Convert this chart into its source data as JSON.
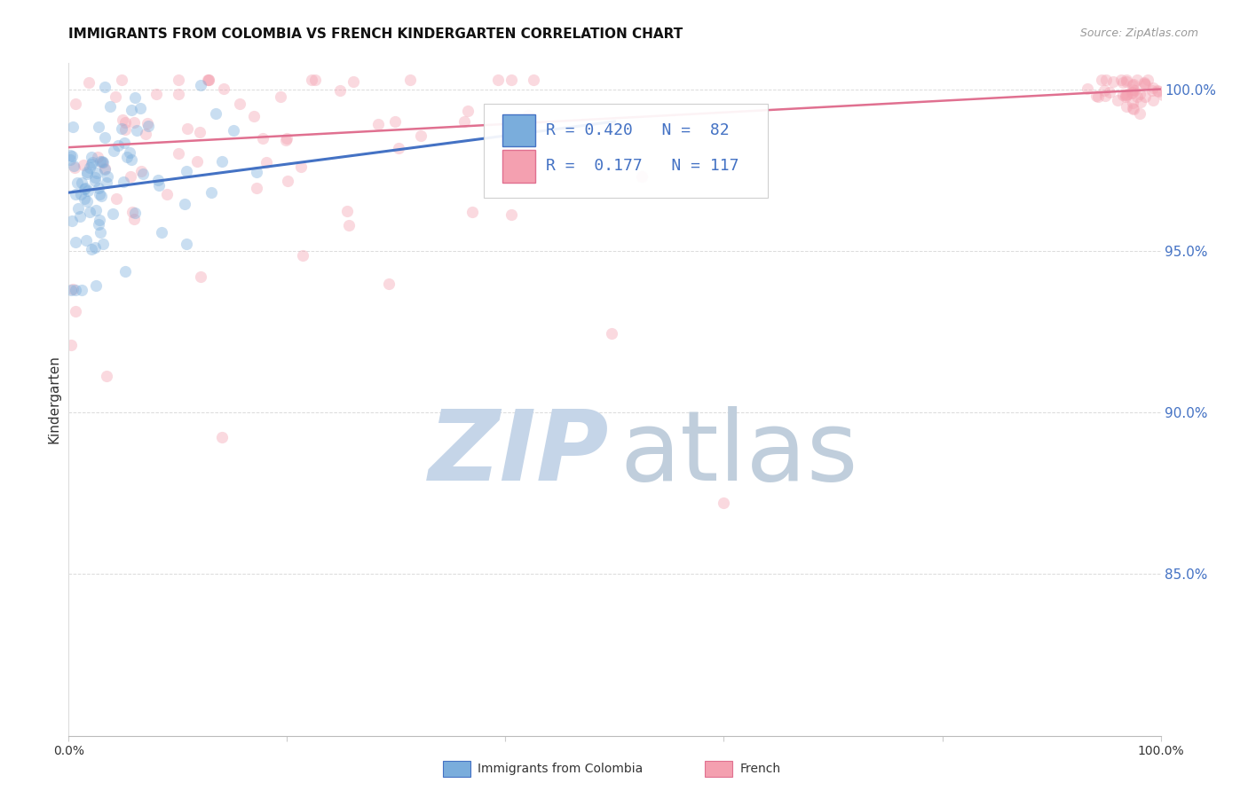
{
  "title": "IMMIGRANTS FROM COLOMBIA VS FRENCH KINDERGARTEN CORRELATION CHART",
  "source_text": "Source: ZipAtlas.com",
  "ylabel": "Kindergarten",
  "x_min": 0.0,
  "x_max": 1.0,
  "y_min": 0.8,
  "y_max": 1.008,
  "y_tick_positions": [
    0.85,
    0.9,
    0.95,
    1.0
  ],
  "legend_r_blue": "R = 0.420",
  "legend_n_blue": "N =  82",
  "legend_r_pink": "R =  0.177",
  "legend_n_pink": "N = 117",
  "legend_label_blue": "Immigrants from Colombia",
  "legend_label_pink": "French",
  "blue_color": "#7AADDC",
  "pink_color": "#F4A0B0",
  "blue_line_color": "#4472C4",
  "pink_line_color": "#E07090",
  "blue_r": 0.42,
  "pink_r": 0.177,
  "watermark_zip_color": "#C5D5E8",
  "watermark_atlas_color": "#C0CEDC",
  "title_fontsize": 11,
  "tick_fontsize": 10,
  "legend_fontsize": 13,
  "source_fontsize": 9,
  "n_blue": 82,
  "n_pink": 117,
  "marker_size": 90,
  "marker_alpha": 0.4,
  "grid_color": "#CCCCCC",
  "grid_alpha": 0.7,
  "blue_trend_x0": 0.0,
  "blue_trend_x1": 0.5,
  "blue_trend_y0": 0.968,
  "blue_trend_y1": 0.99,
  "pink_trend_x0": 0.0,
  "pink_trend_x1": 1.0,
  "pink_trend_y0": 0.982,
  "pink_trend_y1": 1.0
}
